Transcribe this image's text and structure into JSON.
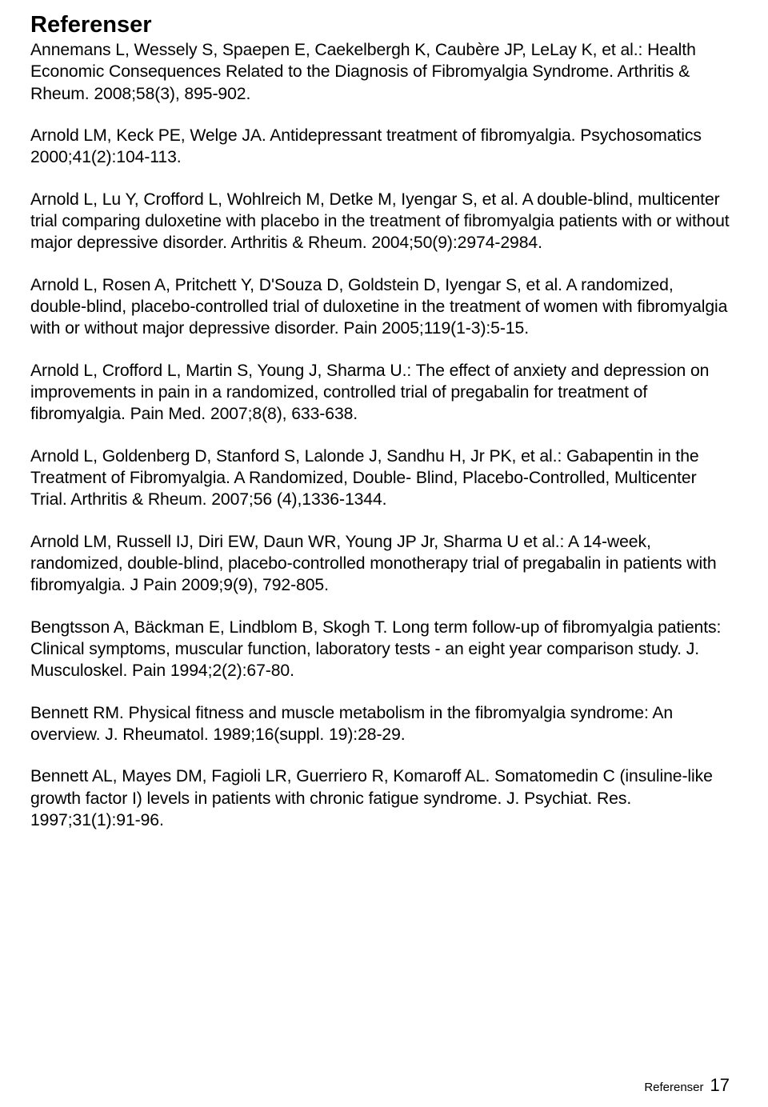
{
  "heading": "Referenser",
  "references": [
    "Annemans L, Wessely S, Spaepen E, Caekelbergh K, Caubère JP, LeLay K, et al.: Health Economic Consequences Related to the Diagnosis of Fibromyalgia Syndrome. Arthritis & Rheum. 2008;58(3), 895-902.",
    "Arnold LM, Keck PE, Welge JA. Antidepressant treatment of fibromyalgia. Psychosomatics 2000;41(2):104-113.",
    "Arnold L, Lu Y, Crofford L, Wohlreich M, Detke M, Iyengar S, et al. A double-blind, multicenter trial comparing duloxetine with placebo in the treatment of fibromyalgia patients with or without major depressive disorder. Arthritis & Rheum. 2004;50(9):2974-2984.",
    "Arnold L, Rosen A, Pritchett Y, D'Souza D, Goldstein D, Iyengar S, et al. A randomized, double-blind, placebo-controlled trial of duloxetine in the treatment of women with fibromyalgia with or without major depressive disorder. Pain 2005;119(1-3):5-15.",
    "Arnold L, Crofford L, Martin S, Young J, Sharma U.: The effect of anxiety and depression on improvements in pain in a randomized, controlled trial of pregabalin for treatment of fibromyalgia. Pain Med. 2007;8(8), 633-638.",
    "Arnold L, Goldenberg D, Stanford S, Lalonde J, Sandhu H, Jr PK, et al.: Gabapentin in the Treatment of Fibromyalgia. A Randomized, Double- Blind, Placebo-Controlled, Multicenter Trial. Arthritis & Rheum. 2007;56 (4),1336-1344.",
    "Arnold LM, Russell IJ, Diri EW, Daun WR, Young JP Jr, Sharma U et al.: A 14-week, randomized, double-blind, placebo-controlled monotherapy trial of pregabalin in patients with fibromyalgia. J Pain 2009;9(9), 792-805.",
    "Bengtsson A, Bäckman E, Lindblom B, Skogh T. Long term follow-up of fibromyalgia patients: Clinical symptoms, muscular function, laboratory tests - an eight year comparison study. J. Musculoskel. Pain 1994;2(2):67-80.",
    "Bennett RM. Physical fitness and muscle metabolism in the fibromyalgia syndrome: An overview. J. Rheumatol. 1989;16(suppl. 19):28-29.",
    "Bennett AL, Mayes DM, Fagioli LR, Guerriero R, Komaroff AL. Somatomedin C (insuline-like growth factor I) levels in patients with chronic fatigue syndrome. J. Psychiat. Res. 1997;31(1):91-96."
  ],
  "footer": {
    "label": "Referenser",
    "page": "17"
  }
}
